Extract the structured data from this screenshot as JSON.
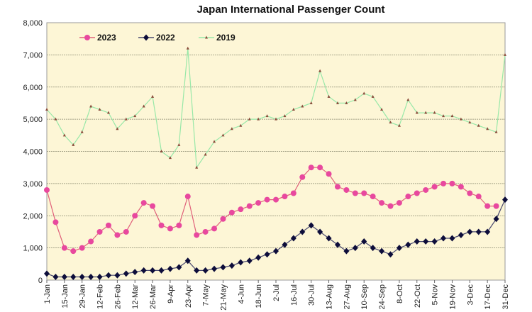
{
  "chart_data": {
    "type": "line",
    "title": "Japan International Passenger Count",
    "xlabel": "",
    "ylabel": "",
    "ylim": [
      0,
      8000
    ],
    "yticks": [
      "0",
      "1,000",
      "2,000",
      "3,000",
      "4,000",
      "5,000",
      "6,000",
      "7,000",
      "8,000"
    ],
    "grid": true,
    "legend_position": "top-left",
    "plot_background": "#fdf6d6",
    "x": [
      "1-Jan",
      "8-Jan",
      "15-Jan",
      "22-Jan",
      "29-Jan",
      "5-Feb",
      "12-Feb",
      "19-Feb",
      "26-Feb",
      "5-Mar",
      "12-Mar",
      "19-Mar",
      "26-Mar",
      "2-Apr",
      "9-Apr",
      "16-Apr",
      "23-Apr",
      "30-Apr",
      "7-May",
      "14-May",
      "21-May",
      "28-May",
      "4-Jun",
      "11-Jun",
      "18-Jun",
      "25-Jun",
      "2-Jul",
      "9-Jul",
      "16-Jul",
      "23-Jul",
      "30-Jul",
      "6-Aug",
      "13-Aug",
      "20-Aug",
      "27-Aug",
      "3-Sep",
      "10-Sep",
      "17-Sep",
      "24-Sep",
      "1-Oct",
      "8-Oct",
      "15-Oct",
      "22-Oct",
      "29-Oct",
      "5-Nov",
      "12-Nov",
      "19-Nov",
      "26-Nov",
      "3-Dec",
      "10-Dec",
      "17-Dec",
      "24-Dec",
      "31-Dec"
    ],
    "xticks": [
      "1-Jan",
      "15-Jan",
      "29-Jan",
      "12-Feb",
      "26-Feb",
      "12-Mar",
      "26-Mar",
      "9-Apr",
      "23-Apr",
      "7-May",
      "21-May",
      "4-Jun",
      "18-Jun",
      "2-Jul",
      "16-Jul",
      "30-Jul",
      "13-Aug",
      "27-Aug",
      "10-Sep",
      "24-Sep",
      "8-Oct",
      "22-Oct",
      "5-Nov",
      "19-Nov",
      "3-Dec",
      "17-Dec",
      "31-Dec"
    ],
    "series": [
      {
        "name": "2023",
        "color": "#e8489e",
        "line_color": "#e0607a",
        "marker": "circle",
        "values": [
          2800,
          1800,
          1000,
          900,
          1000,
          1200,
          1500,
          1700,
          1400,
          1500,
          2000,
          2400,
          2300,
          1700,
          1600,
          1700,
          2600,
          1400,
          1500,
          1600,
          1900,
          2100,
          2200,
          2300,
          2400,
          2500,
          2500,
          2600,
          2700,
          3200,
          3500,
          3500,
          3300,
          2900,
          2800,
          2700,
          2700,
          2600,
          2400,
          2300,
          2400,
          2600,
          2700,
          2800,
          2900,
          3000,
          3000,
          2900,
          2700,
          2600,
          2300,
          2300,
          null
        ]
      },
      {
        "name": "2022",
        "color": "#0d0d3a",
        "line_color": "#4a4a70",
        "marker": "diamond",
        "values": [
          200,
          100,
          100,
          100,
          100,
          100,
          100,
          150,
          150,
          200,
          250,
          300,
          300,
          300,
          350,
          400,
          600,
          300,
          300,
          350,
          400,
          450,
          550,
          600,
          700,
          800,
          900,
          1100,
          1300,
          1500,
          1700,
          1500,
          1300,
          1100,
          900,
          1000,
          1200,
          1000,
          900,
          800,
          1000,
          1100,
          1200,
          1200,
          1200,
          1300,
          1300,
          1400,
          1500,
          1500,
          1500,
          1900,
          2500
        ]
      },
      {
        "name": "2019",
        "color": "#8a4a3a",
        "line_color": "#98e8a8",
        "marker": "triangle",
        "values": [
          5300,
          5000,
          4500,
          4200,
          4600,
          5400,
          5300,
          5200,
          4700,
          5000,
          5100,
          5400,
          5700,
          4000,
          3800,
          4200,
          7200,
          3500,
          3900,
          4300,
          4500,
          4700,
          4800,
          5000,
          5000,
          5100,
          5000,
          5100,
          5300,
          5400,
          5500,
          6500,
          5700,
          5500,
          5500,
          5600,
          5800,
          5700,
          5300,
          4900,
          4800,
          5600,
          5200,
          5200,
          5200,
          5100,
          5100,
          5000,
          4900,
          4800,
          4700,
          4600,
          7000
        ]
      }
    ]
  }
}
